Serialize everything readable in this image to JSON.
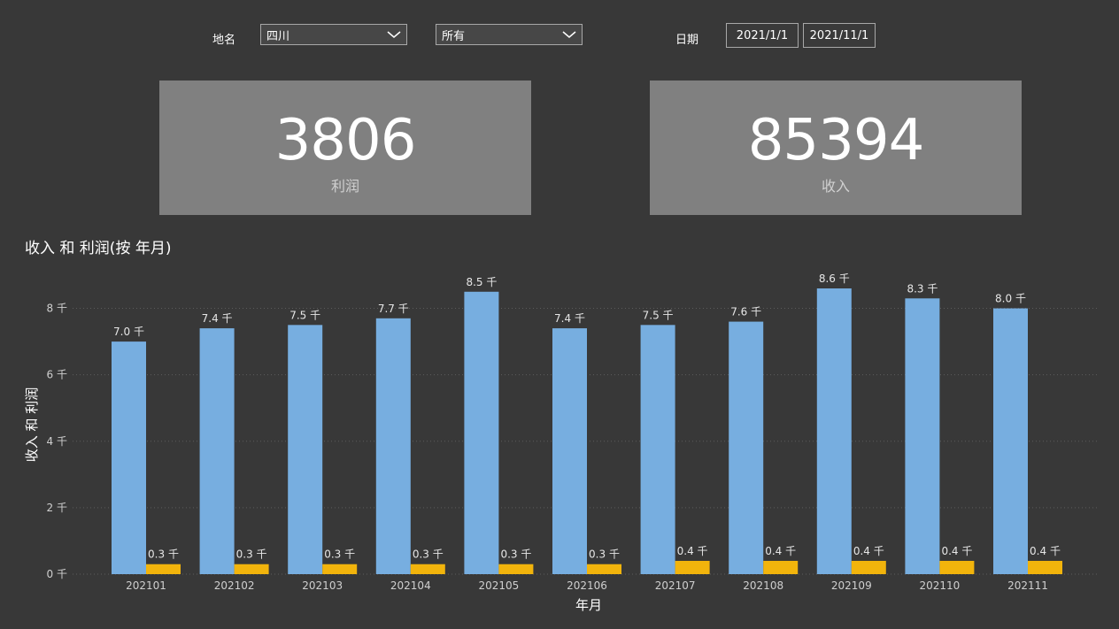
{
  "filters": {
    "place_label": "地名",
    "place_value": "四川",
    "category_value": "所有",
    "date_label": "日期",
    "date_start": "2021/1/1",
    "date_end": "2021/11/1"
  },
  "cards": [
    {
      "value": "3806",
      "label": "利润"
    },
    {
      "value": "85394",
      "label": "收入"
    }
  ],
  "colors": {
    "background": "#383838",
    "card": "#808080",
    "income": "#77aee0",
    "profit": "#f2b40c",
    "gridline": "#5c5c5c"
  },
  "chart_data": {
    "type": "bar",
    "title": "收入 和 利润(按 年月)",
    "xlabel": "年月",
    "ylabel": "收入 和 利润",
    "ylim": [
      0,
      9000
    ],
    "yticks": [
      0,
      2000,
      4000,
      6000,
      8000
    ],
    "ytick_labels": [
      "0 千",
      "2 千",
      "4 千",
      "6 千",
      "8 千"
    ],
    "grid": true,
    "categories": [
      "202101",
      "202102",
      "202103",
      "202104",
      "202105",
      "202106",
      "202107",
      "202108",
      "202109",
      "202110",
      "202111"
    ],
    "series": [
      {
        "values": [
          7000,
          7400,
          7500,
          7700,
          8500,
          7400,
          7500,
          7600,
          8600,
          8300,
          8000
        ],
        "labels": [
          "7.0 千",
          "7.4 千",
          "7.5 千",
          "7.7 千",
          "8.5 千",
          "7.4 千",
          "7.5 千",
          "7.6 千",
          "8.6 千",
          "8.3 千",
          "8.0 千"
        ]
      },
      {
        "values": [
          300,
          300,
          300,
          300,
          300,
          300,
          400,
          400,
          400,
          400,
          400
        ],
        "labels": [
          "0.3 千",
          "0.3 千",
          "0.3 千",
          "0.3 千",
          "0.3 千",
          "0.3 千",
          "0.4 千",
          "0.4 千",
          "0.4 千",
          "0.4 千",
          "0.4 千"
        ]
      }
    ]
  }
}
